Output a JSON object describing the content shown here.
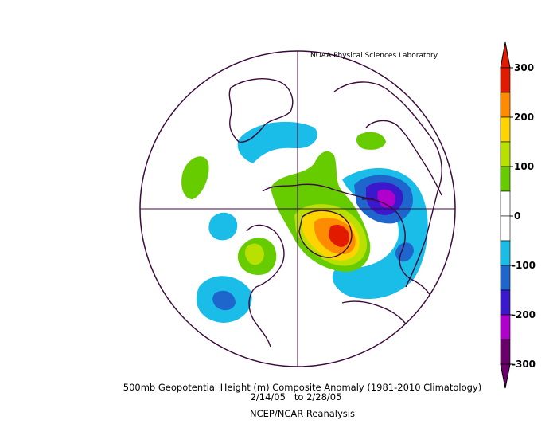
{
  "credit": "NOAA Physical Sciences Laboratory",
  "caption": {
    "line1": "500mb Geopotential Height (m) Composite Anomaly (1981-2010 Climatology)",
    "line2": "2/14/05   to 2/28/05",
    "line3": "NCEP/NCAR Reanalysis"
  },
  "colorbar": {
    "ticks": [
      "300",
      "200",
      "100",
      "0",
      "-100",
      "-200",
      "-300"
    ],
    "bins": [
      {
        "range": "250 to 300",
        "color": "#e11a00"
      },
      {
        "range": "200 to 250",
        "color": "#ff8c00"
      },
      {
        "range": "150 to 200",
        "color": "#ffd400"
      },
      {
        "range": "100 to 150",
        "color": "#b8e000"
      },
      {
        "range": "50 to 100",
        "color": "#66cc00"
      },
      {
        "range": "0 to 50",
        "color": "#ffffff"
      },
      {
        "range": "-50 to 0",
        "color": "#ffffff"
      },
      {
        "range": "-100 to -50",
        "color": "#19bde8"
      },
      {
        "range": "-150 to -100",
        "color": "#1f66cc"
      },
      {
        "range": "-200 to -150",
        "color": "#3a19cc"
      },
      {
        "range": "-250 to -200",
        "color": "#b000cc"
      },
      {
        "range": "-300 to -250",
        "color": "#6a006a"
      }
    ]
  },
  "projection": "north-polar-stereographic",
  "colors": {
    "coastline": "#3c0a3c",
    "background": "#ffffff"
  }
}
